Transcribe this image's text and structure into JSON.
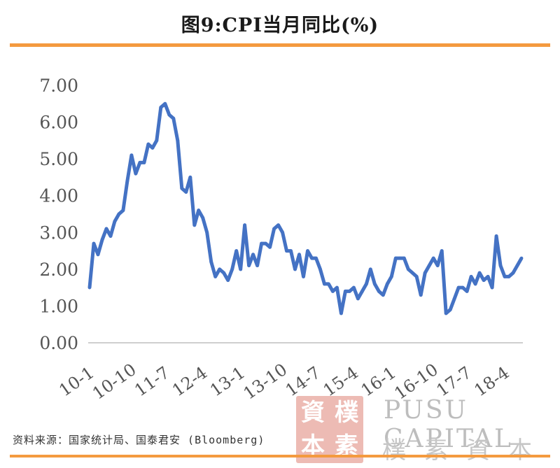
{
  "chart_data": {
    "type": "line",
    "title": "图9:CPI当月同比(%)",
    "xlabel": "",
    "ylabel": "",
    "ylim": [
      0,
      7
    ],
    "yticks": [
      "0.00",
      "1.00",
      "2.00",
      "3.00",
      "4.00",
      "5.00",
      "6.00",
      "7.00"
    ],
    "xticks": [
      "10-1",
      "10-10",
      "11-7",
      "12-4",
      "13-1",
      "13-10",
      "14-7",
      "15-4",
      "16-1",
      "16-10",
      "17-7",
      "18-4"
    ],
    "grid": false,
    "legend": "none",
    "color": "#4472c4",
    "series": [
      {
        "values": [
          1.5,
          2.7,
          2.4,
          2.8,
          3.1,
          2.9,
          3.3,
          3.5,
          3.6,
          4.4,
          5.1,
          4.6,
          4.9,
          4.9,
          5.4,
          5.3,
          5.5,
          6.4,
          6.5,
          6.2,
          6.1,
          5.5,
          4.2,
          4.1,
          4.5,
          3.2,
          3.6,
          3.4,
          3.0,
          2.2,
          1.8,
          2.0,
          1.9,
          1.7,
          2.0,
          2.5,
          2.0,
          3.2,
          2.1,
          2.4,
          2.1,
          2.7,
          2.7,
          2.6,
          3.1,
          3.2,
          3.0,
          2.5,
          2.5,
          2.0,
          2.4,
          1.8,
          2.5,
          2.3,
          2.3,
          2.0,
          1.6,
          1.6,
          1.4,
          1.5,
          0.8,
          1.4,
          1.4,
          1.5,
          1.2,
          1.4,
          1.6,
          2.0,
          1.6,
          1.4,
          1.3,
          1.6,
          1.8,
          2.3,
          2.3,
          2.3,
          2.0,
          1.9,
          1.8,
          1.3,
          1.9,
          2.1,
          2.3,
          2.1,
          2.5,
          0.8,
          0.9,
          1.2,
          1.5,
          1.5,
          1.4,
          1.8,
          1.6,
          1.9,
          1.7,
          1.8,
          1.5,
          2.9,
          2.1,
          1.8,
          1.8,
          1.9,
          2.1,
          2.3
        ]
      }
    ]
  },
  "footer": {
    "source": "资料来源：国家统计局、国泰君安 (Bloomberg)"
  },
  "watermark": {
    "seal_chars": [
      "資",
      "樸",
      "本",
      "素"
    ],
    "brand_en": "PUSU CAPITAL",
    "brand_cn": "樸素資本"
  }
}
